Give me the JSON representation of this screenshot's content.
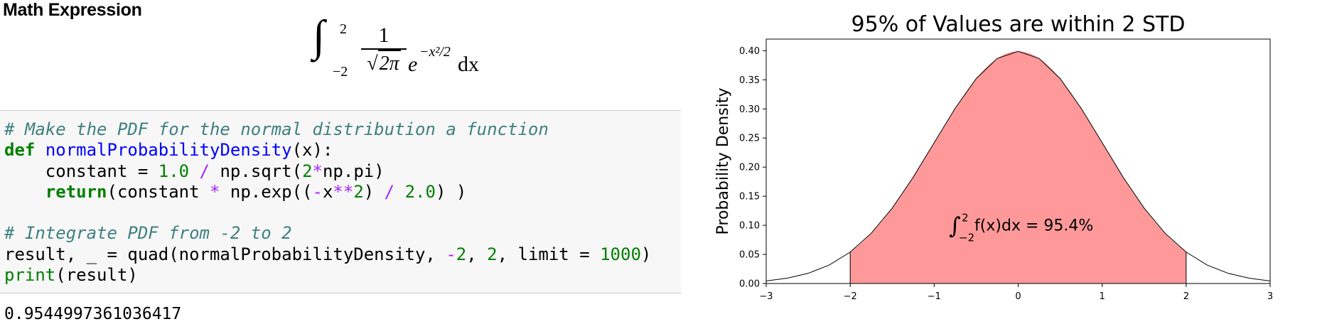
{
  "heading": "Math Expression",
  "math": {
    "lower": "−2",
    "upper": "2",
    "numerator": "1",
    "denominator_root": "2π",
    "exp_base": "e",
    "exponent": "−x²/2",
    "differential": "dx"
  },
  "code": {
    "line1_comment": "# Make the PDF for the normal distribution a function",
    "line2_def": "def",
    "line2_fn": "normalProbabilityDensity",
    "line2_rest": "(x):",
    "line3_a": "    constant = ",
    "line3_num1": "1.0",
    "line3_op": " / ",
    "line3_b": "np.sqrt(",
    "line3_num2": "2",
    "line3_op2": "*",
    "line3_c": "np.pi)",
    "line4_indent": "    ",
    "line4_return": "return",
    "line4_a": "(constant ",
    "line4_op": "*",
    "line4_b": " np.exp((",
    "line4_op2": "-",
    "line4_c": "x",
    "line4_op3": "**",
    "line4_num": "2",
    "line4_d": ") ",
    "line4_op4": "/",
    "line4_e": " ",
    "line4_num2": "2.0",
    "line4_f": ") )",
    "line6_comment": "# Integrate PDF from -2 to 2",
    "line7_a": "result, _ = quad(normalProbabilityDensity, ",
    "line7_op": "-",
    "line7_num1": "2",
    "line7_b": ", ",
    "line7_num2": "2",
    "line7_c": ", limit = ",
    "line7_num3": "1000",
    "line7_d": ")",
    "line8_print": "print",
    "line8_rest": "(result)"
  },
  "output": "0.9544997361036417",
  "chart_data": {
    "type": "area",
    "title": "95% of Values are within 2 STD",
    "xlabel": "",
    "ylabel": "Probability Density",
    "xlim": [
      -3.0,
      3.0
    ],
    "ylim": [
      0.0,
      0.42
    ],
    "xticks": [
      -3,
      -2,
      -1,
      0,
      1,
      2,
      3
    ],
    "xtick_labels": [
      "−3",
      "−2",
      "−1",
      "0",
      "1",
      "2",
      "3"
    ],
    "yticks": [
      0.0,
      0.05,
      0.1,
      0.15,
      0.2,
      0.25,
      0.3,
      0.35,
      0.4
    ],
    "ytick_labels": [
      "0.00",
      "0.05",
      "0.10",
      "0.15",
      "0.20",
      "0.25",
      "0.30",
      "0.35",
      "0.40"
    ],
    "series": [
      {
        "x": [
          -3.0,
          -2.75,
          -2.5,
          -2.25,
          -2.0,
          -1.75,
          -1.5,
          -1.25,
          -1.0,
          -0.75,
          -0.5,
          -0.25,
          0.0,
          0.25,
          0.5,
          0.75,
          1.0,
          1.25,
          1.5,
          1.75,
          2.0,
          2.25,
          2.5,
          2.75,
          3.0
        ],
        "y": [
          0.0044,
          0.0091,
          0.0175,
          0.0317,
          0.054,
          0.0863,
          0.1295,
          0.1826,
          0.242,
          0.3011,
          0.3521,
          0.3867,
          0.3989,
          0.3867,
          0.3521,
          0.3011,
          0.242,
          0.1826,
          0.1295,
          0.0863,
          0.054,
          0.0317,
          0.0175,
          0.0091,
          0.0044
        ]
      }
    ],
    "shaded_region": {
      "from": -2,
      "to": 2
    },
    "annotation": {
      "prefix": "∫",
      "sup": "2",
      "sub": "−2",
      "body": "f(x)dx = 95.4%",
      "x": -0.3,
      "y": 0.09
    },
    "grid": false,
    "colors": {
      "fill": "#ff9999",
      "line": "#000000"
    }
  }
}
